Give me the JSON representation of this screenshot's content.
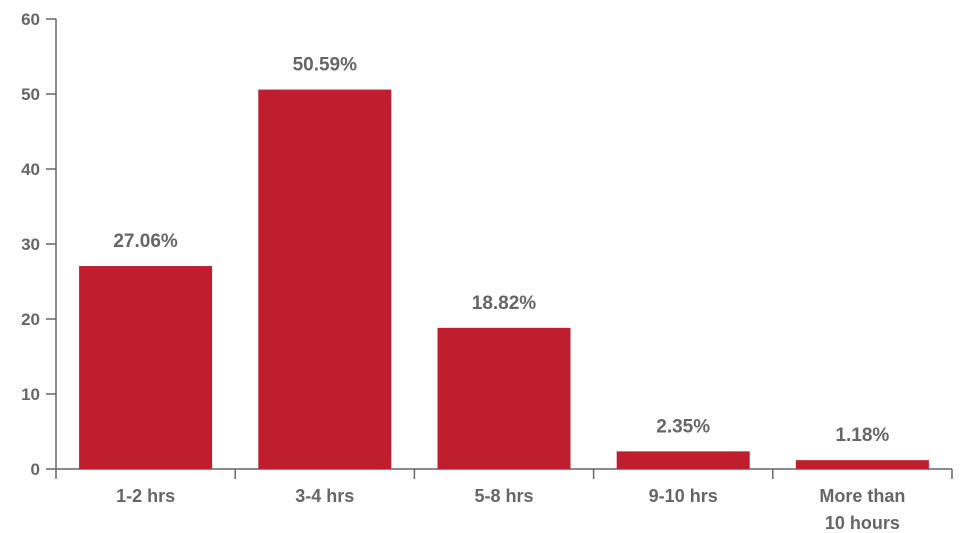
{
  "chart_data": {
    "type": "bar",
    "title": "",
    "xlabel": "",
    "ylabel": "",
    "categories": [
      [
        "1-2 hrs"
      ],
      [
        "3-4 hrs"
      ],
      [
        "5-8 hrs"
      ],
      [
        "9-10 hrs"
      ],
      [
        "More than",
        "10 hours"
      ]
    ],
    "values": [
      27.06,
      50.59,
      18.82,
      2.35,
      1.18
    ],
    "data_labels": [
      "27.06%",
      "50.59%",
      "18.82%",
      "2.35%",
      "1.18%"
    ],
    "ylim": [
      0,
      60
    ],
    "yticks": [
      0,
      10,
      20,
      30,
      40,
      50,
      60
    ],
    "grid": false,
    "legend": "none",
    "bar_color": "#be1e2d"
  }
}
